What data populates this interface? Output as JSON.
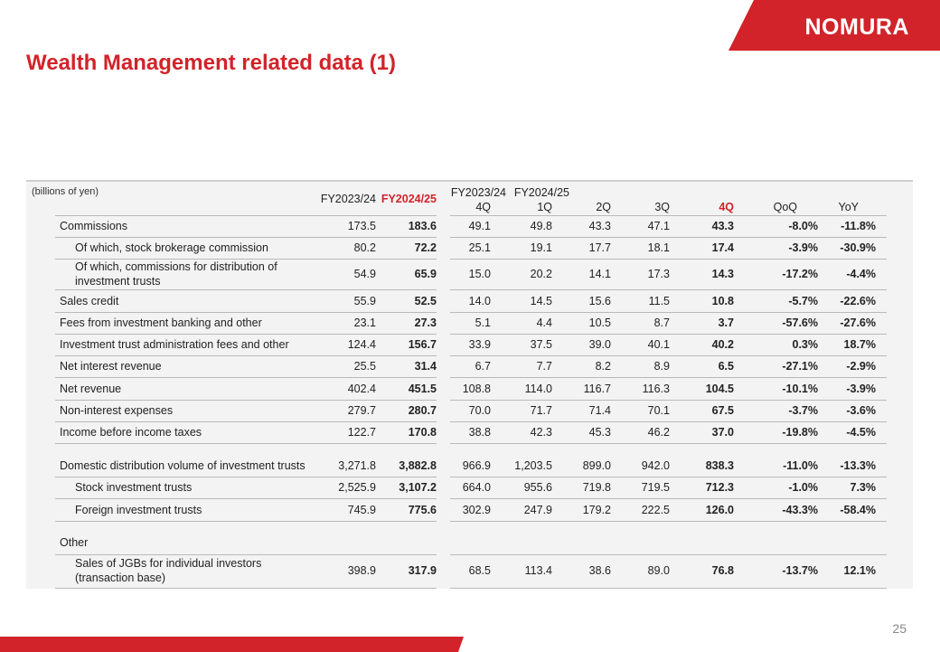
{
  "brand": {
    "logo_text": "NOMURA",
    "accent_color": "#d2232a"
  },
  "page": {
    "title": "Wealth Management related data (1)",
    "page_number": "25"
  },
  "table": {
    "unit_note": "(billions of yen)",
    "headers": {
      "fy2023": "FY2023/24",
      "fy2024": "FY2024/25",
      "q_fy2023_top": "FY2023/24",
      "q_fy2023_bottom": "4Q",
      "q_fy2024_top": "FY2024/25",
      "q1": "1Q",
      "q2": "2Q",
      "q3": "3Q",
      "q4": "4Q",
      "qoq": "QoQ",
      "yoy": "YoY"
    },
    "rows": [
      {
        "label": "Commissions",
        "values": [
          "173.5",
          "183.6",
          "49.1",
          "49.8",
          "43.3",
          "47.1",
          "43.3",
          "-8.0%",
          "-11.8%"
        ]
      },
      {
        "label": "Of which, stock brokerage commission",
        "values": [
          "80.2",
          "72.2",
          "25.1",
          "19.1",
          "17.7",
          "18.1",
          "17.4",
          "-3.9%",
          "-30.9%"
        ]
      },
      {
        "label": "Of which, commissions for distribution of investment trusts",
        "values": [
          "54.9",
          "65.9",
          "15.0",
          "20.2",
          "14.1",
          "17.3",
          "14.3",
          "-17.2%",
          "-4.4%"
        ]
      },
      {
        "label": "Sales credit",
        "values": [
          "55.9",
          "52.5",
          "14.0",
          "14.5",
          "15.6",
          "11.5",
          "10.8",
          "-5.7%",
          "-22.6%"
        ]
      },
      {
        "label": "Fees from investment banking and other",
        "values": [
          "23.1",
          "27.3",
          "5.1",
          "4.4",
          "10.5",
          "8.7",
          "3.7",
          "-57.6%",
          "-27.6%"
        ]
      },
      {
        "label": "Investment trust administration fees and other",
        "values": [
          "124.4",
          "156.7",
          "33.9",
          "37.5",
          "39.0",
          "40.1",
          "40.2",
          "0.3%",
          "18.7%"
        ]
      },
      {
        "label": "Net interest revenue",
        "values": [
          "25.5",
          "31.4",
          "6.7",
          "7.7",
          "8.2",
          "8.9",
          "6.5",
          "-27.1%",
          "-2.9%"
        ]
      },
      {
        "label": "Net revenue",
        "values": [
          "402.4",
          "451.5",
          "108.8",
          "114.0",
          "116.7",
          "116.3",
          "104.5",
          "-10.1%",
          "-3.9%"
        ]
      },
      {
        "label": "Non-interest expenses",
        "values": [
          "279.7",
          "280.7",
          "70.0",
          "71.7",
          "71.4",
          "70.1",
          "67.5",
          "-3.7%",
          "-3.6%"
        ]
      },
      {
        "label": "Income before income taxes",
        "values": [
          "122.7",
          "170.8",
          "38.8",
          "42.3",
          "45.3",
          "46.2",
          "37.0",
          "-19.8%",
          "-4.5%"
        ]
      },
      {
        "label": "Domestic distribution volume of investment trusts",
        "values": [
          "3,271.8",
          "3,882.8",
          "966.9",
          "1,203.5",
          "899.0",
          "942.0",
          "838.3",
          "-11.0%",
          "-13.3%"
        ]
      },
      {
        "label": "Stock investment trusts",
        "values": [
          "2,525.9",
          "3,107.2",
          "664.0",
          "955.6",
          "719.8",
          "719.5",
          "712.3",
          "-1.0%",
          "7.3%"
        ]
      },
      {
        "label": "Foreign investment trusts",
        "values": [
          "745.9",
          "775.6",
          "302.9",
          "247.9",
          "179.2",
          "222.5",
          "126.0",
          "-43.3%",
          "-58.4%"
        ]
      },
      {
        "label": "Other",
        "values": []
      },
      {
        "label": "Sales of JGBs for individual investors (transaction base)",
        "values": [
          "398.9",
          "317.9",
          "68.5",
          "113.4",
          "38.6",
          "89.0",
          "76.8",
          "-13.7%",
          "12.1%"
        ]
      }
    ]
  }
}
